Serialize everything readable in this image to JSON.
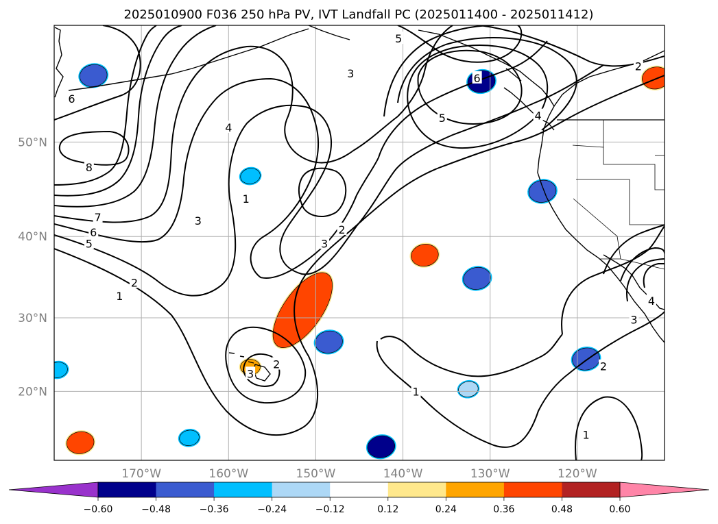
{
  "chart_data": {
    "type": "map-contour",
    "title": "2025010900 F036 250 hPa PV, IVT Landfall PC (2025011400 - 2025011412)",
    "x_ticks": [
      "170°W",
      "160°W",
      "150°W",
      "140°W",
      "130°W",
      "120°W"
    ],
    "y_ticks": [
      "50°N",
      "40°N",
      "30°N",
      "20°N"
    ],
    "lon_range": [
      -180,
      -110
    ],
    "lat_range": [
      10,
      60
    ],
    "grid": true,
    "contour_variable": "250 hPa PV",
    "contour_levels": [
      "1",
      "2",
      "3",
      "4",
      "5",
      "6",
      "7",
      "8"
    ],
    "contour_labels": [
      {
        "text": "6",
        "lon": -178.0,
        "lat": 54.0
      },
      {
        "text": "8",
        "lon": -176.0,
        "lat": 47.5
      },
      {
        "text": "7",
        "lon": -175.0,
        "lat": 42.2
      },
      {
        "text": "6",
        "lon": -175.5,
        "lat": 40.5
      },
      {
        "text": "5",
        "lon": -176.0,
        "lat": 39.2
      },
      {
        "text": "4",
        "lon": -160.0,
        "lat": 51.4
      },
      {
        "text": "3",
        "lon": -163.5,
        "lat": 41.8
      },
      {
        "text": "1",
        "lon": -158.0,
        "lat": 44.2
      },
      {
        "text": "2",
        "lon": -170.8,
        "lat": 34.5
      },
      {
        "text": "1",
        "lon": -172.5,
        "lat": 32.8
      },
      {
        "text": "3",
        "lon": -149.0,
        "lat": 39.2
      },
      {
        "text": "2",
        "lon": -147.0,
        "lat": 40.8
      },
      {
        "text": "3",
        "lon": -146.0,
        "lat": 56.2
      },
      {
        "text": "5",
        "lon": -140.5,
        "lat": 59.0
      },
      {
        "text": "5",
        "lon": -135.5,
        "lat": 52.3
      },
      {
        "text": "6",
        "lon": -131.5,
        "lat": 55.8
      },
      {
        "text": "4",
        "lon": -124.5,
        "lat": 52.5
      },
      {
        "text": "2",
        "lon": -113.0,
        "lat": 56.8
      },
      {
        "text": "2",
        "lon": -154.5,
        "lat": 23.8
      },
      {
        "text": "3",
        "lon": -157.5,
        "lat": 22.5
      },
      {
        "text": "1",
        "lon": -138.5,
        "lat": 20.0
      },
      {
        "text": "2",
        "lon": -117.0,
        "lat": 23.5
      },
      {
        "text": "4",
        "lon": -111.5,
        "lat": 32.2
      },
      {
        "text": "3",
        "lon": -113.5,
        "lat": 29.8
      },
      {
        "text": "1",
        "lon": -119.0,
        "lat": 13.8
      }
    ],
    "shading_variable": "IVT Landfall PC",
    "shaded_regions": [
      {
        "sign": "positive",
        "lon": -151.5,
        "lat": 31.0,
        "level": 0.36
      },
      {
        "sign": "positive",
        "lon": -137.5,
        "lat": 37.8,
        "level": 0.36
      },
      {
        "sign": "positive",
        "lon": -157.5,
        "lat": 23.4,
        "level": 0.24
      },
      {
        "sign": "positive",
        "lon": -177.0,
        "lat": 12.6,
        "level": 0.36
      },
      {
        "sign": "positive",
        "lon": -111.0,
        "lat": 55.8,
        "level": 0.36
      },
      {
        "sign": "negative",
        "lon": -175.5,
        "lat": 56.0,
        "level": -0.36
      },
      {
        "sign": "negative",
        "lon": -131.0,
        "lat": 55.5,
        "level": -0.48
      },
      {
        "sign": "negative",
        "lon": -124.0,
        "lat": 45.0,
        "level": -0.36
      },
      {
        "sign": "negative",
        "lon": -131.5,
        "lat": 35.0,
        "level": -0.36
      },
      {
        "sign": "negative",
        "lon": -148.5,
        "lat": 26.8,
        "level": -0.36
      },
      {
        "sign": "negative",
        "lon": -142.5,
        "lat": 12.0,
        "level": -0.6
      },
      {
        "sign": "negative",
        "lon": -164.5,
        "lat": 13.3,
        "level": -0.24
      },
      {
        "sign": "negative",
        "lon": -119.0,
        "lat": 24.5,
        "level": -0.36
      },
      {
        "sign": "negative",
        "lon": -179.6,
        "lat": 23.0,
        "level": -0.24
      },
      {
        "sign": "negative",
        "lon": -132.5,
        "lat": 20.3,
        "level": -0.12
      },
      {
        "sign": "negative",
        "lon": -157.5,
        "lat": 46.6,
        "level": -0.24
      }
    ],
    "colorbar": {
      "ticks": [
        "−0.60",
        "−0.48",
        "−0.36",
        "−0.24",
        "−0.12",
        "0.12",
        "0.24",
        "0.36",
        "0.48",
        "0.60"
      ],
      "extend": "both",
      "colors": [
        "#9932cc",
        "#00008b",
        "#3a5bd0",
        "#00bfff",
        "#add8f6",
        "#ffffff",
        "#ffe88c",
        "#ffa500",
        "#ff4500",
        "#b22222",
        "#ff85a8"
      ]
    }
  }
}
